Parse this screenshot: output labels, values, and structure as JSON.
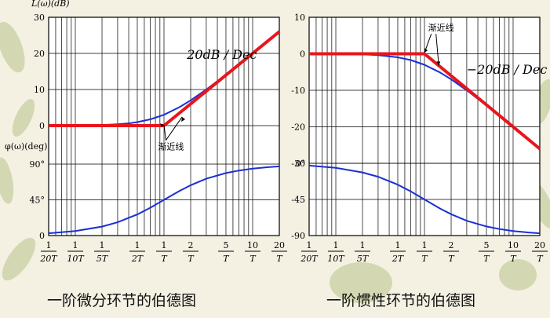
{
  "chart_data": [
    {
      "type": "line",
      "title": "",
      "caption": "一阶微分环节的伯德图",
      "magnitude": {
        "ylabel": "L(ω)(dB)",
        "ylim": [
          0,
          30
        ],
        "yticks": [
          "0",
          "10",
          "20",
          "30"
        ],
        "slope_label": "20dB / Dec",
        "asymptote_label": "渐近线",
        "series": [
          {
            "name": "exact",
            "color": "#1a2fd6",
            "x": [
              0.05,
              0.1,
              0.2,
              0.3,
              0.4,
              0.5,
              0.7,
              1,
              1.5,
              2,
              3,
              5,
              7,
              10,
              15,
              20
            ],
            "y": [
              0.01,
              0.04,
              0.17,
              0.37,
              0.64,
              0.97,
              1.73,
              3.01,
              5.12,
              6.99,
              10.0,
              14.15,
              17.0,
              20.04,
              23.54,
              26.03
            ]
          },
          {
            "name": "asymptote",
            "color": "#e8151b",
            "x": [
              0.05,
              1,
              20
            ],
            "y": [
              0,
              0,
              26.02
            ]
          }
        ]
      },
      "phase": {
        "ylabel": "φ(ω)(deg)",
        "ylim": [
          0,
          90
        ],
        "yticks": [
          "0",
          "45°",
          "90°"
        ],
        "series": [
          {
            "name": "exact",
            "color": "#1a2fd6",
            "x": [
              0.05,
              0.1,
              0.2,
              0.3,
              0.5,
              0.7,
              1,
              1.5,
              2,
              3,
              5,
              7,
              10,
              15,
              20
            ],
            "y": [
              2.86,
              5.71,
              11.31,
              16.7,
              26.57,
              34.99,
              45.0,
              56.31,
              63.43,
              71.57,
              78.69,
              81.87,
              84.29,
              86.19,
              87.14
            ]
          }
        ]
      }
    },
    {
      "type": "line",
      "title": "",
      "caption": "一阶惯性环节的伯德图",
      "magnitude": {
        "ylabel": "",
        "ylim": [
          -30,
          10
        ],
        "yticks": [
          "-30",
          "-20",
          "-10",
          "0",
          "10"
        ],
        "slope_label": "−20dB / Dec",
        "asymptote_label": "渐近线",
        "series": [
          {
            "name": "exact",
            "color": "#1a2fd6",
            "x": [
              0.05,
              0.1,
              0.2,
              0.3,
              0.5,
              0.7,
              1,
              1.5,
              2,
              3,
              5,
              7,
              10,
              15,
              20
            ],
            "y": [
              -0.01,
              -0.04,
              -0.17,
              -0.37,
              -0.97,
              -1.73,
              -3.01,
              -5.12,
              -6.99,
              -10.0,
              -14.15,
              -17.0,
              -20.04,
              -23.54,
              -26.03
            ]
          },
          {
            "name": "asymptote",
            "color": "#e8151b",
            "x": [
              0.05,
              1,
              20
            ],
            "y": [
              0,
              0,
              -26.02
            ]
          }
        ]
      },
      "phase": {
        "ylabel": "",
        "ylim": [
          -90,
          0
        ],
        "yticks": [
          "-90",
          "-45",
          "0°"
        ],
        "series": [
          {
            "name": "exact",
            "color": "#1a2fd6",
            "x": [
              0.05,
              0.1,
              0.2,
              0.3,
              0.5,
              0.7,
              1,
              1.5,
              2,
              3,
              5,
              7,
              10,
              15,
              20
            ],
            "y": [
              -2.86,
              -5.71,
              -11.31,
              -16.7,
              -26.57,
              -34.99,
              -45.0,
              -56.31,
              -63.43,
              -71.57,
              -78.69,
              -81.87,
              -84.29,
              -86.19,
              -87.14
            ]
          }
        ]
      }
    }
  ],
  "x_axis": {
    "scale": "log",
    "xlim": [
      0.05,
      20
    ],
    "ticks": [
      {
        "x": 0.05,
        "num": "1",
        "den": "20T"
      },
      {
        "x": 0.1,
        "num": "1",
        "den": "10T"
      },
      {
        "x": 0.2,
        "num": "1",
        "den": "5T"
      },
      {
        "x": 0.5,
        "num": "1",
        "den": "2T"
      },
      {
        "x": 1,
        "num": "1",
        "den": "T"
      },
      {
        "x": 2,
        "num": "2",
        "den": "T"
      },
      {
        "x": 5,
        "num": "5",
        "den": "T"
      },
      {
        "x": 10,
        "num": "10",
        "den": "T"
      },
      {
        "x": 20,
        "num": "20",
        "den": "T"
      }
    ],
    "grid": true
  }
}
